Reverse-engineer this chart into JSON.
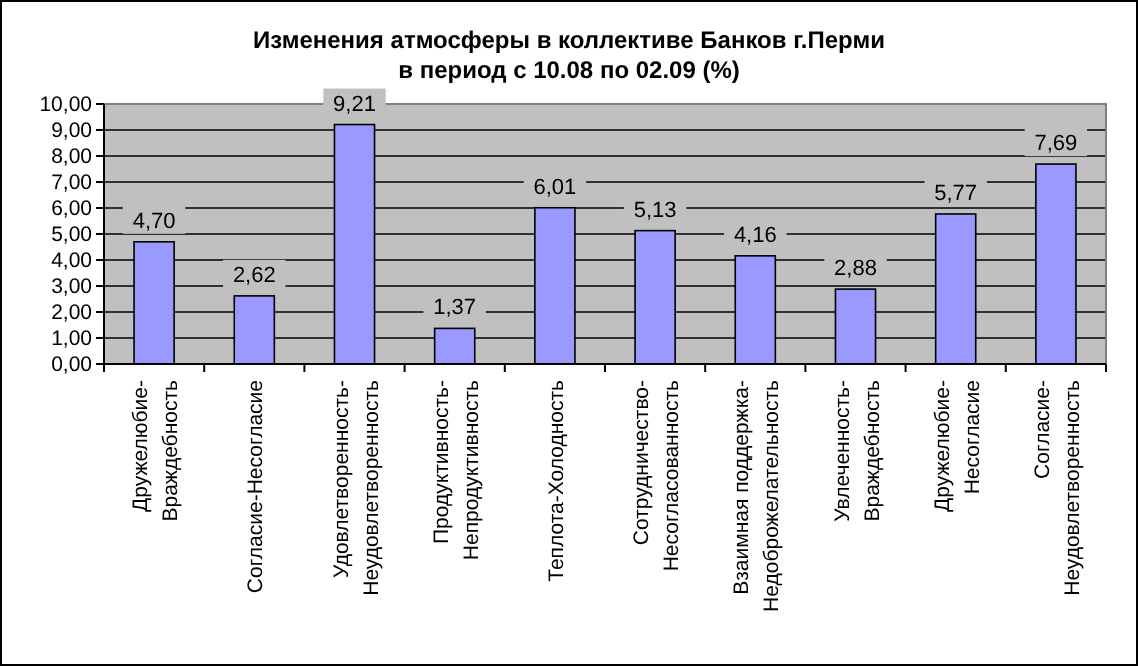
{
  "chart_data": {
    "type": "bar",
    "title": "Изменения атмосферы в коллективе Банков г.Перми\nв период с 10.08 по 02.09  (%)",
    "categories": [
      "Дружелюбие-\nВраждебность",
      "Согласие-Несогласие",
      "Удовлетворенность-\nНеудовлетворенность",
      "Продуктивность-\nНепродуктивность",
      "Теплота-Холодность",
      "Сотрудничество-\nНесогласованность",
      "Взаимная поддержка-\nНедоброжелательность",
      "Увлеченность-\nВраждебность",
      "Дружелюбие-\nНесогласие",
      "Согласие-\nНеудовлетворенность"
    ],
    "values": [
      4.7,
      2.62,
      9.21,
      1.37,
      6.01,
      5.13,
      4.16,
      2.88,
      5.77,
      7.69
    ],
    "color": "#9999ff",
    "value_labels": [
      "4,70",
      "2,62",
      "9,21",
      "1,37",
      "6,01",
      "5,13",
      "4,16",
      "2,88",
      "5,77",
      "7,69"
    ],
    "ylim": [
      0,
      10
    ],
    "yticks": [
      {
        "value": 0,
        "label": "0,00"
      },
      {
        "value": 1,
        "label": "1,00"
      },
      {
        "value": 2,
        "label": "2,00"
      },
      {
        "value": 3,
        "label": "3,00"
      },
      {
        "value": 4,
        "label": "4,00"
      },
      {
        "value": 5,
        "label": "5,00"
      },
      {
        "value": 6,
        "label": "6,00"
      },
      {
        "value": 7,
        "label": "7,00"
      },
      {
        "value": 8,
        "label": "8,00"
      },
      {
        "value": 9,
        "label": "9,00"
      },
      {
        "value": 10,
        "label": "10,00"
      }
    ],
    "grid": "y"
  }
}
